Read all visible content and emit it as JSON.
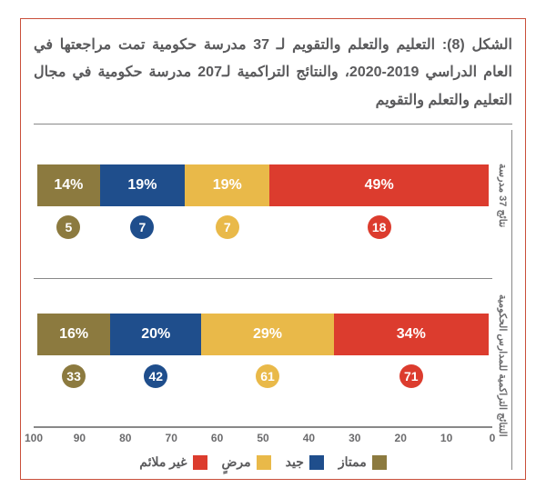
{
  "title": "الشكل (8): التعليم والتعلم والتقويم لـ 37 مدرسة حكومية تمت مراجعتها في العام الدراسي 2019-2020، والنتائج التراكمية لـ207 مدرسة حكومية في مجال التعليم والتعلم والتقويم",
  "chart": {
    "type": "stacked-bar-horizontal",
    "colors": {
      "outstanding": "#8c7a3f",
      "good": "#1f4e8c",
      "satisfactory": "#e9b949",
      "inadequate": "#dc3c2e",
      "axis_text": "#6b6b6d",
      "border": "#888888"
    },
    "rows": [
      {
        "ylabel": "نتائج 37 مدرسة",
        "segments": [
          {
            "key": "outstanding",
            "pct": 14,
            "count": 5
          },
          {
            "key": "good",
            "pct": 19,
            "count": 7
          },
          {
            "key": "satisfactory",
            "pct": 19,
            "count": 7
          },
          {
            "key": "inadequate",
            "pct": 49,
            "count": 18
          }
        ]
      },
      {
        "ylabel": "النتائج التراكمية للمدارس الحكومية",
        "segments": [
          {
            "key": "outstanding",
            "pct": 16,
            "count": 33
          },
          {
            "key": "good",
            "pct": 20,
            "count": 42
          },
          {
            "key": "satisfactory",
            "pct": 29,
            "count": 61
          },
          {
            "key": "inadequate",
            "pct": 34,
            "count": 71
          }
        ]
      }
    ],
    "xaxis": {
      "min": 0,
      "max": 100,
      "step": 10
    },
    "legend": [
      {
        "key": "outstanding",
        "label": "ممتاز"
      },
      {
        "key": "good",
        "label": "جيد"
      },
      {
        "key": "satisfactory",
        "label": "مرضٍ"
      },
      {
        "key": "inadequate",
        "label": "غير ملائم"
      }
    ]
  }
}
